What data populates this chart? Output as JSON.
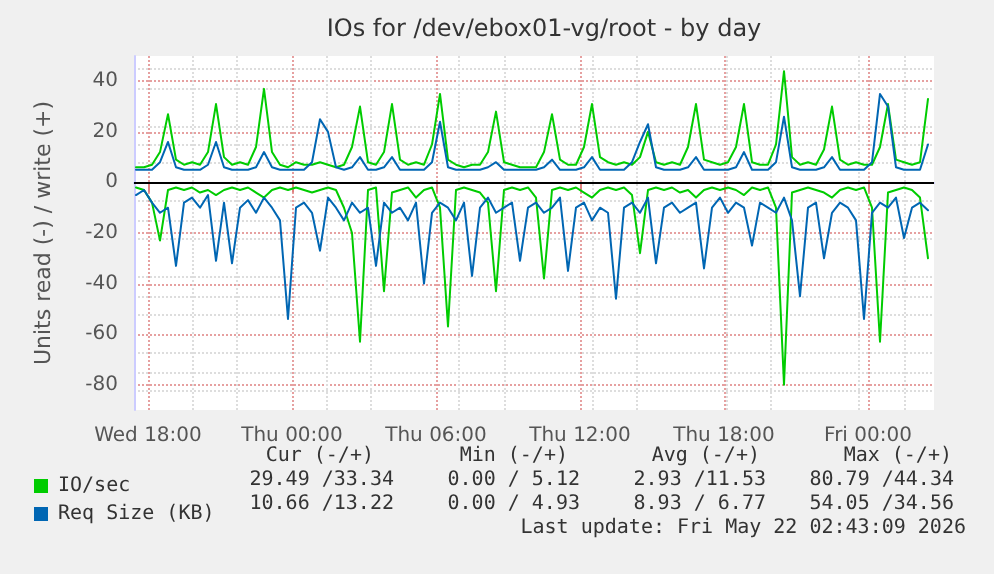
{
  "chart_data": {
    "type": "line",
    "title": "IOs for /dev/ebox01-vg/root - by day",
    "ylabel": "Units read (-) / write (+)",
    "x": [
      "2026-05-20T17:30",
      "2026-05-20T17:50",
      "2026-05-20T18:10",
      "2026-05-20T18:30",
      "2026-05-20T18:50",
      "2026-05-20T19:10",
      "2026-05-20T19:30",
      "2026-05-20T19:50",
      "2026-05-20T20:10",
      "2026-05-20T20:30",
      "2026-05-20T20:50",
      "2026-05-20T21:10",
      "2026-05-20T21:30",
      "2026-05-20T21:50",
      "2026-05-20T22:10",
      "2026-05-20T22:30",
      "2026-05-20T22:50",
      "2026-05-20T23:10",
      "2026-05-20T23:30",
      "2026-05-20T23:50",
      "2026-05-21T00:10",
      "2026-05-21T00:30",
      "2026-05-21T00:50",
      "2026-05-21T01:10",
      "2026-05-21T01:30",
      "2026-05-21T01:50",
      "2026-05-21T02:10",
      "2026-05-21T02:30",
      "2026-05-21T02:50",
      "2026-05-21T03:10",
      "2026-05-21T03:30",
      "2026-05-21T03:50",
      "2026-05-21T04:10",
      "2026-05-21T04:30",
      "2026-05-21T04:50",
      "2026-05-21T05:10",
      "2026-05-21T05:30",
      "2026-05-21T05:50",
      "2026-05-21T06:10",
      "2026-05-21T06:30",
      "2026-05-21T06:50",
      "2026-05-21T07:10",
      "2026-05-21T07:30",
      "2026-05-21T07:50",
      "2026-05-21T08:10",
      "2026-05-21T08:30",
      "2026-05-21T08:50",
      "2026-05-21T09:10",
      "2026-05-21T09:30",
      "2026-05-21T09:50",
      "2026-05-21T10:10",
      "2026-05-21T10:30",
      "2026-05-21T10:50",
      "2026-05-21T11:10",
      "2026-05-21T11:30",
      "2026-05-21T11:50",
      "2026-05-21T12:10",
      "2026-05-21T12:30",
      "2026-05-21T12:50",
      "2026-05-21T13:10",
      "2026-05-21T13:30",
      "2026-05-21T13:50",
      "2026-05-21T14:10",
      "2026-05-21T14:30",
      "2026-05-21T14:50",
      "2026-05-21T15:10",
      "2026-05-21T15:30",
      "2026-05-21T15:50",
      "2026-05-21T16:10",
      "2026-05-21T16:30",
      "2026-05-21T16:50",
      "2026-05-21T17:10",
      "2026-05-21T17:30",
      "2026-05-21T17:50",
      "2026-05-21T18:10",
      "2026-05-21T18:30",
      "2026-05-21T18:50",
      "2026-05-21T19:10",
      "2026-05-21T19:30",
      "2026-05-21T19:50",
      "2026-05-21T20:10",
      "2026-05-21T20:30",
      "2026-05-21T20:50",
      "2026-05-21T21:10",
      "2026-05-21T21:30",
      "2026-05-21T21:50",
      "2026-05-21T22:10",
      "2026-05-21T22:30",
      "2026-05-21T22:50",
      "2026-05-21T23:10",
      "2026-05-21T23:30",
      "2026-05-21T23:50",
      "2026-05-22T00:10",
      "2026-05-22T00:30",
      "2026-05-22T00:50",
      "2026-05-22T01:10",
      "2026-05-22T01:30",
      "2026-05-22T01:50",
      "2026-05-22T02:10",
      "2026-05-22T02:30"
    ],
    "series": [
      {
        "name": "IO/sec",
        "color": "#00cc00",
        "values": [
          6,
          6,
          7,
          12,
          27,
          9,
          7,
          8,
          7,
          12,
          31,
          10,
          7,
          8,
          7,
          14,
          37,
          12,
          7,
          6,
          8,
          7,
          7,
          8,
          7,
          6,
          7,
          14,
          30,
          8,
          7,
          12,
          31,
          9,
          7,
          8,
          7,
          15,
          35,
          9,
          7,
          6,
          7,
          7,
          12,
          28,
          8,
          7,
          6,
          6,
          6,
          12,
          27,
          9,
          7,
          7,
          14,
          31,
          10,
          8,
          7,
          8,
          7,
          10,
          20,
          8,
          7,
          8,
          7,
          14,
          31,
          9,
          8,
          7,
          8,
          14,
          31,
          8,
          7,
          7,
          15,
          44,
          10,
          7,
          8,
          7,
          13,
          30,
          9,
          7,
          8,
          7,
          7,
          14,
          31,
          9,
          8,
          7,
          8,
          33
        ]
      },
      {
        "color": "#00cc00",
        "values": [
          -2,
          -3,
          -8,
          -23,
          -3,
          -2,
          -3,
          -2,
          -4,
          -3,
          -5,
          -3,
          -2,
          -3,
          -2,
          -4,
          -6,
          -3,
          -2,
          -3,
          -2,
          -3,
          -4,
          -3,
          -2,
          -3,
          -10,
          -20,
          -63,
          -3,
          -2,
          -43,
          -4,
          -3,
          -2,
          -6,
          -3,
          -2,
          -10,
          -57,
          -3,
          -2,
          -3,
          -4,
          -8,
          -43,
          -3,
          -2,
          -3,
          -2,
          -6,
          -38,
          -3,
          -2,
          -3,
          -2,
          -4,
          -6,
          -3,
          -2,
          -3,
          -2,
          -5,
          -28,
          -3,
          -2,
          -3,
          -2,
          -4,
          -3,
          -6,
          -3,
          -2,
          -3,
          -2,
          -3,
          -5,
          -2,
          -3,
          -2,
          -10,
          -80,
          -4,
          -3,
          -2,
          -3,
          -4,
          -6,
          -3,
          -2,
          -3,
          -2,
          -10,
          -63,
          -4,
          -3,
          -2,
          -3,
          -6,
          -30
        ]
      },
      {
        "name": "Req Size (KB)",
        "color": "#0066b3",
        "values": [
          5,
          5,
          5,
          8,
          16,
          6,
          5,
          5,
          5,
          7,
          16,
          6,
          5,
          5,
          5,
          6,
          12,
          6,
          5,
          5,
          5,
          5,
          8,
          25,
          20,
          6,
          5,
          6,
          10,
          5,
          5,
          6,
          10,
          5,
          5,
          5,
          5,
          8,
          24,
          6,
          5,
          5,
          5,
          5,
          6,
          8,
          5,
          5,
          5,
          5,
          5,
          6,
          9,
          5,
          5,
          5,
          6,
          10,
          5,
          5,
          5,
          5,
          8,
          16,
          23,
          6,
          5,
          5,
          5,
          6,
          10,
          5,
          5,
          5,
          5,
          6,
          12,
          5,
          5,
          5,
          8,
          26,
          6,
          5,
          5,
          5,
          6,
          10,
          5,
          5,
          5,
          5,
          8,
          35,
          30,
          6,
          5,
          5,
          5,
          15
        ]
      },
      {
        "color": "#0066b3",
        "values": [
          -5,
          -3,
          -8,
          -12,
          -10,
          -33,
          -8,
          -6,
          -10,
          -5,
          -31,
          -8,
          -32,
          -10,
          -7,
          -12,
          -6,
          -10,
          -15,
          -54,
          -10,
          -8,
          -12,
          -27,
          -6,
          -10,
          -15,
          -8,
          -12,
          -10,
          -33,
          -8,
          -12,
          -10,
          -15,
          -8,
          -40,
          -12,
          -8,
          -10,
          -15,
          -8,
          -37,
          -10,
          -6,
          -12,
          -10,
          -8,
          -31,
          -10,
          -8,
          -12,
          -10,
          -6,
          -35,
          -10,
          -8,
          -15,
          -10,
          -12,
          -46,
          -10,
          -8,
          -12,
          -6,
          -32,
          -10,
          -8,
          -12,
          -10,
          -8,
          -34,
          -10,
          -6,
          -12,
          -8,
          -10,
          -25,
          -8,
          -10,
          -12,
          -6,
          -15,
          -45,
          -10,
          -8,
          -30,
          -12,
          -8,
          -10,
          -15,
          -54,
          -12,
          -8,
          -10,
          -6,
          -22,
          -10,
          -8,
          -11
        ]
      }
    ],
    "xlim": [
      "2026-05-20T17:25",
      "2026-05-22T02:45"
    ],
    "xticks": [
      {
        "value": "2026-05-20T18:00",
        "label": "Wed 18:00"
      },
      {
        "value": "2026-05-21T00:00",
        "label": "Thu 00:00"
      },
      {
        "value": "2026-05-21T06:00",
        "label": "Thu 06:00"
      },
      {
        "value": "2026-05-21T12:00",
        "label": "Thu 12:00"
      },
      {
        "value": "2026-05-21T18:00",
        "label": "Thu 18:00"
      },
      {
        "value": "2026-05-22T00:00",
        "label": "Fri 00:00"
      }
    ],
    "ylim": [
      -90,
      50
    ],
    "yticks": [
      -80,
      -60,
      -40,
      -20,
      0,
      20,
      40
    ],
    "ref_lines": [
      {
        "axis": "y",
        "value": 0,
        "color": "#000000"
      }
    ],
    "grid": true,
    "legend": "bottom left",
    "marker": "none",
    "line_style": "solid",
    "annotations": [
      "Cur (-/+)",
      "Min (-/+)",
      "Avg (-/+)",
      "Max (-/+)",
      "29.49 /33.34",
      "0.00 / 5.12",
      "2.93 /11.53",
      "80.79 /44.34",
      "10.66 /13.22",
      "0.00 / 4.93",
      "8.93 / 6.77",
      "54.05 /34.56",
      "Last update: Fri May 22 02:43:09 2026"
    ]
  }
}
